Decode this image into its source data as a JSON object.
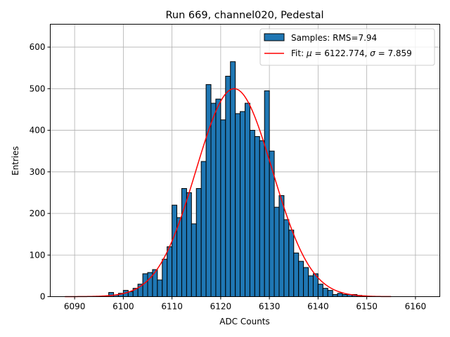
{
  "chart_data": {
    "type": "bar",
    "title": "Run 669, channel020, Pedestal",
    "xlabel": "ADC Counts",
    "ylabel": "Entries",
    "xlim": [
      6085,
      6165
    ],
    "ylim": [
      0,
      655
    ],
    "xticks": [
      6090,
      6100,
      6110,
      6120,
      6130,
      6140,
      6150,
      6160
    ],
    "yticks": [
      0,
      100,
      200,
      300,
      400,
      500,
      600
    ],
    "grid": true,
    "legend_position": "top-right",
    "bin_width": 1,
    "histogram": {
      "name": "Samples: RMS=7.94",
      "color": "#1f77b4",
      "edge_color": "#000000",
      "bin_starts": [
        6097,
        6098,
        6099,
        6100,
        6101,
        6102,
        6103,
        6104,
        6105,
        6106,
        6107,
        6108,
        6109,
        6110,
        6111,
        6112,
        6113,
        6114,
        6115,
        6116,
        6117,
        6118,
        6119,
        6120,
        6121,
        6122,
        6123,
        6124,
        6125,
        6126,
        6127,
        6128,
        6129,
        6130,
        6131,
        6132,
        6133,
        6134,
        6135,
        6136,
        6137,
        6138,
        6139,
        6140,
        6141,
        6142,
        6143,
        6144,
        6145,
        6146,
        6147,
        6148,
        6149
      ],
      "counts": [
        10,
        4,
        8,
        15,
        12,
        20,
        30,
        55,
        58,
        65,
        40,
        90,
        120,
        220,
        190,
        260,
        250,
        175,
        260,
        325,
        510,
        465,
        475,
        425,
        530,
        565,
        440,
        445,
        465,
        400,
        385,
        375,
        495,
        350,
        215,
        243,
        185,
        160,
        105,
        85,
        70,
        50,
        55,
        30,
        20,
        15,
        5,
        8,
        5,
        5,
        5,
        3,
        2
      ]
    },
    "fit": {
      "name": "Fit: μ = 6122.774, σ = 7.859",
      "label_prefix": "Fit: ",
      "label_mu": "μ",
      "label_mid": " = 6122.774, ",
      "label_sigma": "σ",
      "label_suffix": " = 7.859",
      "color": "#ff0000",
      "mu": 6122.774,
      "sigma": 7.859,
      "amplitude": 500,
      "x_range": [
        6088,
        6155
      ]
    }
  }
}
